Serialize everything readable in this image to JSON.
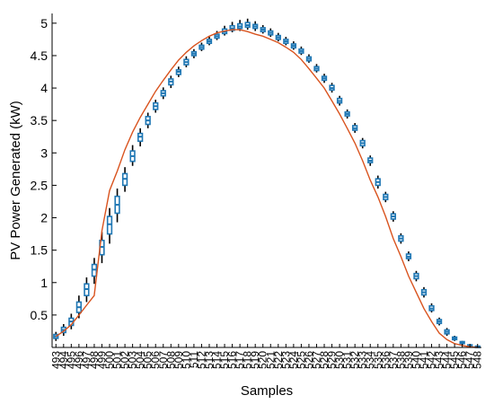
{
  "chart_data": {
    "type": "box",
    "xlabel": "Samples",
    "ylabel": "PV Power Generated (kW)",
    "ylim": [
      0,
      5.15
    ],
    "yticks": [
      0.5,
      1,
      1.5,
      2,
      2.5,
      3,
      3.5,
      4,
      4.5,
      5
    ],
    "grid": false,
    "legend": "none",
    "colors": {
      "box": "#1f77b4",
      "whisker": "#000000",
      "line": "#d9531e",
      "axis": "#000000"
    },
    "categories": [
      493,
      494,
      495,
      496,
      497,
      498,
      499,
      500,
      501,
      502,
      503,
      504,
      505,
      506,
      507,
      508,
      509,
      510,
      511,
      512,
      513,
      514,
      515,
      516,
      517,
      518,
      519,
      520,
      521,
      522,
      523,
      524,
      525,
      526,
      527,
      528,
      529,
      530,
      531,
      532,
      533,
      534,
      535,
      536,
      537,
      538,
      539,
      540,
      541,
      542,
      543,
      544,
      545,
      546,
      547,
      548
    ],
    "series": [
      {
        "type": "box",
        "medians": [
          0.17,
          0.27,
          0.4,
          0.62,
          0.9,
          1.2,
          1.55,
          1.9,
          2.2,
          2.6,
          2.95,
          3.25,
          3.5,
          3.72,
          3.92,
          4.1,
          4.25,
          4.4,
          4.53,
          4.63,
          4.72,
          4.8,
          4.87,
          4.92,
          4.95,
          4.97,
          4.95,
          4.9,
          4.85,
          4.78,
          4.72,
          4.65,
          4.57,
          4.45,
          4.3,
          4.15,
          4.0,
          3.8,
          3.6,
          3.38,
          3.15,
          2.88,
          2.55,
          2.32,
          2.02,
          1.68,
          1.4,
          1.1,
          0.85,
          0.6,
          0.4,
          0.24,
          0.14,
          0.07,
          0.03,
          0.01
        ],
        "q1": [
          0.14,
          0.23,
          0.34,
          0.54,
          0.8,
          1.1,
          1.43,
          1.75,
          2.07,
          2.5,
          2.87,
          3.18,
          3.44,
          3.67,
          3.88,
          4.05,
          4.21,
          4.36,
          4.5,
          4.6,
          4.69,
          4.77,
          4.84,
          4.89,
          4.92,
          4.94,
          4.92,
          4.87,
          4.82,
          4.75,
          4.69,
          4.62,
          4.54,
          4.42,
          4.27,
          4.12,
          3.97,
          3.77,
          3.57,
          3.35,
          3.11,
          2.85,
          2.5,
          2.28,
          1.98,
          1.64,
          1.37,
          1.06,
          0.81,
          0.57,
          0.37,
          0.21,
          0.12,
          0.06,
          0.02,
          0.005
        ],
        "q3": [
          0.2,
          0.31,
          0.45,
          0.7,
          0.98,
          1.28,
          1.65,
          2.02,
          2.33,
          2.68,
          3.03,
          3.3,
          3.56,
          3.77,
          3.96,
          4.14,
          4.28,
          4.44,
          4.56,
          4.66,
          4.75,
          4.83,
          4.91,
          4.96,
          4.99,
          5.01,
          4.98,
          4.93,
          4.88,
          4.81,
          4.75,
          4.68,
          4.6,
          4.48,
          4.33,
          4.18,
          4.04,
          3.84,
          3.63,
          3.42,
          3.19,
          2.92,
          2.6,
          2.36,
          2.06,
          1.72,
          1.44,
          1.14,
          0.89,
          0.64,
          0.43,
          0.27,
          0.16,
          0.09,
          0.04,
          0.02
        ],
        "whisker_low": [
          0.1,
          0.18,
          0.28,
          0.45,
          0.7,
          0.98,
          1.3,
          1.6,
          1.93,
          2.4,
          2.8,
          3.1,
          3.38,
          3.62,
          3.83,
          4.0,
          4.17,
          4.32,
          4.46,
          4.57,
          4.66,
          4.74,
          4.81,
          4.86,
          4.88,
          4.9,
          4.88,
          4.84,
          4.79,
          4.72,
          4.66,
          4.59,
          4.51,
          4.39,
          4.24,
          4.08,
          3.93,
          3.73,
          3.53,
          3.31,
          3.07,
          2.8,
          2.45,
          2.24,
          1.94,
          1.6,
          1.33,
          1.02,
          0.77,
          0.54,
          0.34,
          0.18,
          0.1,
          0.04,
          0.01,
          0.0
        ],
        "whisker_high": [
          0.24,
          0.36,
          0.52,
          0.8,
          1.08,
          1.38,
          1.78,
          2.15,
          2.45,
          2.78,
          3.12,
          3.38,
          3.62,
          3.82,
          4.01,
          4.19,
          4.33,
          4.49,
          4.6,
          4.7,
          4.79,
          4.88,
          4.96,
          5.02,
          5.05,
          5.07,
          5.03,
          4.97,
          4.92,
          4.85,
          4.79,
          4.72,
          4.64,
          4.52,
          4.37,
          4.22,
          4.08,
          3.88,
          3.67,
          3.46,
          3.23,
          2.96,
          2.65,
          2.4,
          2.1,
          1.76,
          1.48,
          1.18,
          0.93,
          0.68,
          0.46,
          0.3,
          0.18,
          0.1,
          0.05,
          0.02
        ]
      },
      {
        "type": "line",
        "values": [
          0.17,
          0.25,
          0.35,
          0.5,
          0.65,
          0.8,
          1.8,
          2.42,
          2.72,
          3.05,
          3.32,
          3.55,
          3.75,
          3.95,
          4.12,
          4.28,
          4.43,
          4.55,
          4.65,
          4.73,
          4.8,
          4.85,
          4.88,
          4.9,
          4.9,
          4.87,
          4.83,
          4.8,
          4.75,
          4.7,
          4.63,
          4.55,
          4.44,
          4.3,
          4.15,
          4.0,
          3.8,
          3.6,
          3.38,
          3.15,
          2.88,
          2.58,
          2.32,
          2.02,
          1.68,
          1.4,
          1.1,
          0.85,
          0.6,
          0.4,
          0.22,
          0.12,
          0.06,
          0.03,
          0.01,
          0.0
        ]
      }
    ]
  }
}
